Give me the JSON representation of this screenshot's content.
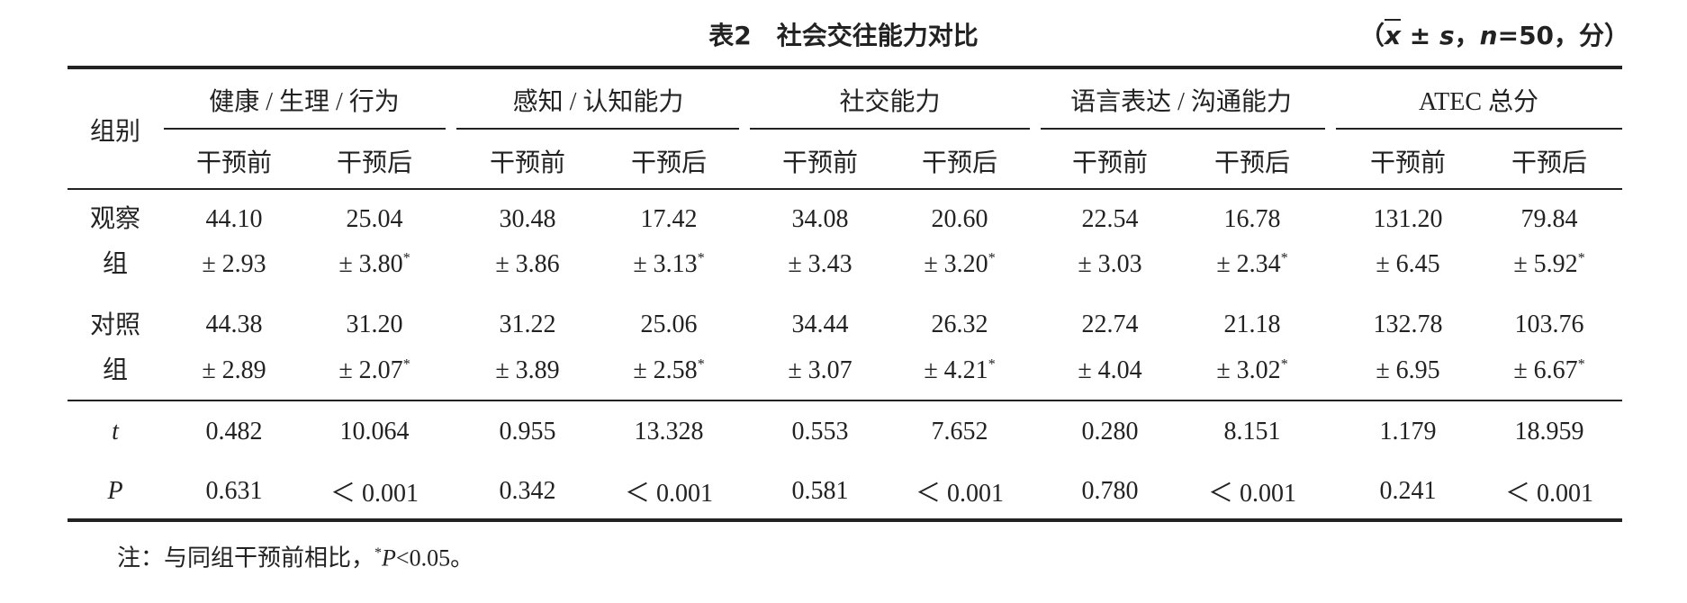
{
  "title": "表2　社会交往能力对比",
  "note": [
    {
      "text": "（"
    },
    {
      "text": "x",
      "style": "xbar"
    },
    {
      "text": " ± "
    },
    {
      "text": "s",
      "style": "italic"
    },
    {
      "text": "，"
    },
    {
      "text": "n",
      "style": "italic"
    },
    {
      "text": "=50，分）"
    }
  ],
  "table": {
    "group_header": "组别",
    "groups": [
      "健康 / 生理 / 行为",
      "感知 / 认知能力",
      "社交能力",
      "语言表达 / 沟通能力",
      "ATEC 总分"
    ],
    "subheaders": [
      "干预前",
      "干预后",
      "干预前",
      "干预后",
      "干预前",
      "干预后",
      "干预前",
      "干预后",
      "干预前",
      "干预后"
    ],
    "rows": [
      {
        "group": "观察组",
        "cells": [
          {
            "mean": "44.10",
            "sd": "± 2.93"
          },
          {
            "mean": "25.04",
            "sd": "± 3.80",
            "sig": "*"
          },
          {
            "mean": "30.48",
            "sd": "± 3.86"
          },
          {
            "mean": "17.42",
            "sd": "± 3.13",
            "sig": "*"
          },
          {
            "mean": "34.08",
            "sd": "± 3.43"
          },
          {
            "mean": "20.60",
            "sd": "± 3.20",
            "sig": "*"
          },
          {
            "mean": "22.54",
            "sd": "± 3.03"
          },
          {
            "mean": "16.78",
            "sd": "± 2.34",
            "sig": "*"
          },
          {
            "mean": "131.20",
            "sd": "± 6.45"
          },
          {
            "mean": "79.84",
            "sd": "± 5.92",
            "sig": "*"
          }
        ]
      },
      {
        "group": "对照组",
        "cells": [
          {
            "mean": "44.38",
            "sd": "± 2.89"
          },
          {
            "mean": "31.20",
            "sd": "± 2.07",
            "sig": "*"
          },
          {
            "mean": "31.22",
            "sd": "± 3.89"
          },
          {
            "mean": "25.06",
            "sd": "± 2.58",
            "sig": "*"
          },
          {
            "mean": "34.44",
            "sd": "± 3.07"
          },
          {
            "mean": "26.32",
            "sd": "± 4.21",
            "sig": "*"
          },
          {
            "mean": "22.74",
            "sd": "± 4.04"
          },
          {
            "mean": "21.18",
            "sd": "± 3.02",
            "sig": "*"
          },
          {
            "mean": "132.78",
            "sd": "± 6.95"
          },
          {
            "mean": "103.76",
            "sd": "± 6.67",
            "sig": "*"
          }
        ]
      }
    ],
    "stats": [
      {
        "label": "t",
        "values": [
          "0.482",
          "10.064",
          "0.955",
          "13.328",
          "0.553",
          "7.652",
          "0.280",
          "8.151",
          "1.179",
          "18.959"
        ]
      },
      {
        "label": "P",
        "values": [
          "0.631",
          "＜ 0.001",
          "0.342",
          "＜ 0.001",
          "0.581",
          "＜ 0.001",
          "0.780",
          "＜ 0.001",
          "0.241",
          "＜ 0.001"
        ]
      }
    ]
  },
  "footnote": [
    {
      "text": "注：与同组干预前相比，"
    },
    {
      "text": "*",
      "style": "sup"
    },
    {
      "text": "P",
      "style": "italic"
    },
    {
      "text": "<0.05。"
    }
  ]
}
